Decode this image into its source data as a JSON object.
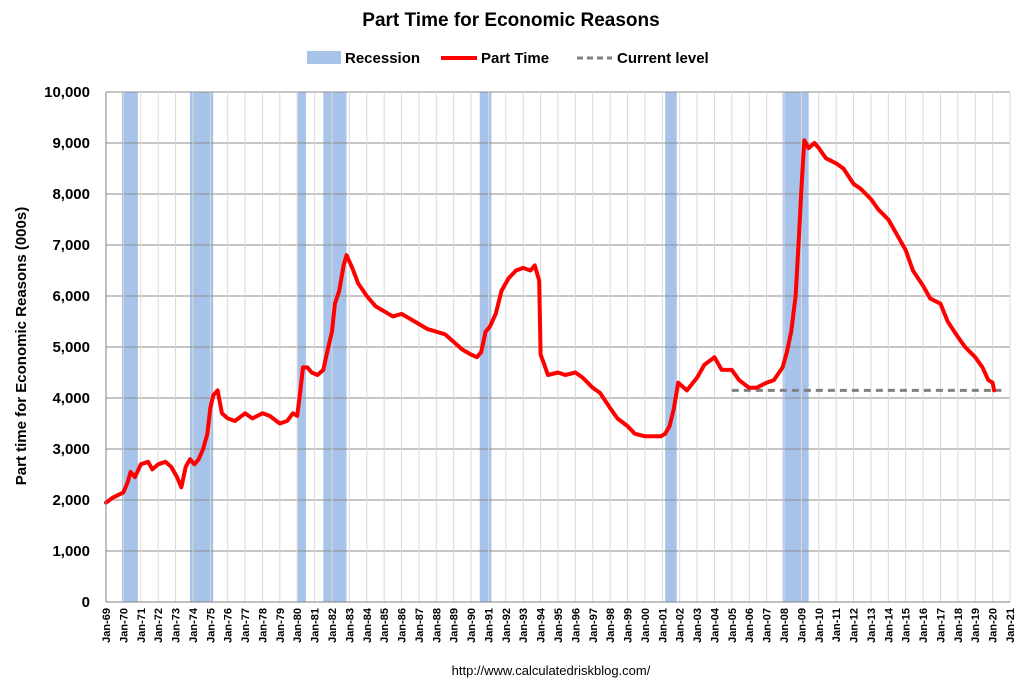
{
  "chart_data": {
    "type": "line",
    "title": "Part Time for Economic Reasons",
    "ylabel": "Part time for Economic Reasons (000s)",
    "xlabel": "",
    "source": "http://www.calculatedriskblog.com/",
    "ylim": [
      0,
      10000
    ],
    "xlim": [
      "1969-01",
      "2021-01"
    ],
    "yticks": [
      0,
      1000,
      2000,
      3000,
      4000,
      5000,
      6000,
      7000,
      8000,
      9000,
      10000
    ],
    "ytick_labels": [
      "0",
      "1,000",
      "2,000",
      "3,000",
      "4,000",
      "5,000",
      "6,000",
      "7,000",
      "8,000",
      "9,000",
      "10,000"
    ],
    "xtick_labels": [
      "Jan-69",
      "Jan-70",
      "Jan-71",
      "Jan-72",
      "Jan-73",
      "Jan-74",
      "Jan-75",
      "Jan-76",
      "Jan-77",
      "Jan-78",
      "Jan-79",
      "Jan-80",
      "Jan-81",
      "Jan-82",
      "Jan-83",
      "Jan-84",
      "Jan-85",
      "Jan-86",
      "Jan-87",
      "Jan-88",
      "Jan-89",
      "Jan-90",
      "Jan-91",
      "Jan-92",
      "Jan-93",
      "Jan-94",
      "Jan-95",
      "Jan-96",
      "Jan-97",
      "Jan-98",
      "Jan-99",
      "Jan-00",
      "Jan-01",
      "Jan-02",
      "Jan-03",
      "Jan-04",
      "Jan-05",
      "Jan-06",
      "Jan-07",
      "Jan-08",
      "Jan-09",
      "Jan-10",
      "Jan-11",
      "Jan-12",
      "Jan-13",
      "Jan-14",
      "Jan-15",
      "Jan-16",
      "Jan-17",
      "Jan-18",
      "Jan-19",
      "Jan-20",
      "Jan-21"
    ],
    "grid": true,
    "legend_position": "top",
    "legend": [
      "Recession",
      "Part Time",
      "Current level"
    ],
    "recessions": [
      {
        "start": "1969-12",
        "end": "1970-11"
      },
      {
        "start": "1973-11",
        "end": "1975-03"
      },
      {
        "start": "1980-01",
        "end": "1980-07"
      },
      {
        "start": "1981-07",
        "end": "1982-11"
      },
      {
        "start": "1990-07",
        "end": "1991-03"
      },
      {
        "start": "2001-03",
        "end": "2001-11"
      },
      {
        "start": "2007-12",
        "end": "2009-06"
      }
    ],
    "current_level": {
      "value": 4150,
      "start": "2005-01",
      "end": "2020-07"
    },
    "series": [
      {
        "name": "Part Time",
        "color": "#ff0000",
        "x": [
          "1969-01",
          "1969-06",
          "1970-01",
          "1970-04",
          "1970-06",
          "1970-09",
          "1971-01",
          "1971-06",
          "1971-09",
          "1972-01",
          "1972-06",
          "1972-10",
          "1973-02",
          "1973-05",
          "1973-08",
          "1973-11",
          "1974-02",
          "1974-05",
          "1974-08",
          "1974-11",
          "1975-01",
          "1975-03",
          "1975-06",
          "1975-09",
          "1976-01",
          "1976-06",
          "1977-01",
          "1977-06",
          "1978-01",
          "1978-06",
          "1979-01",
          "1979-06",
          "1979-10",
          "1980-01",
          "1980-03",
          "1980-05",
          "1980-08",
          "1980-11",
          "1981-03",
          "1981-07",
          "1981-10",
          "1982-01",
          "1982-03",
          "1982-06",
          "1982-09",
          "1982-11",
          "1983-03",
          "1983-07",
          "1984-01",
          "1984-07",
          "1985-01",
          "1985-07",
          "1986-01",
          "1986-07",
          "1987-01",
          "1987-07",
          "1988-01",
          "1988-07",
          "1989-01",
          "1989-07",
          "1990-01",
          "1990-05",
          "1990-08",
          "1990-11",
          "1991-02",
          "1991-06",
          "1991-10",
          "1992-03",
          "1992-08",
          "1993-01",
          "1993-06",
          "1993-09",
          "1993-12",
          "1994-01",
          "1994-03",
          "1994-06",
          "1995-01",
          "1995-06",
          "1996-01",
          "1996-06",
          "1997-01",
          "1997-06",
          "1998-01",
          "1998-06",
          "1999-01",
          "1999-06",
          "2000-01",
          "2000-06",
          "2000-12",
          "2001-03",
          "2001-06",
          "2001-09",
          "2001-12",
          "2002-06",
          "2003-01",
          "2003-06",
          "2004-01",
          "2004-06",
          "2005-01",
          "2005-06",
          "2006-01",
          "2006-06",
          "2007-01",
          "2007-06",
          "2007-12",
          "2008-03",
          "2008-06",
          "2008-09",
          "2008-11",
          "2009-01",
          "2009-03",
          "2009-06",
          "2009-10",
          "2010-01",
          "2010-06",
          "2011-01",
          "2011-06",
          "2012-01",
          "2012-06",
          "2013-01",
          "2013-06",
          "2014-01",
          "2014-06",
          "2015-01",
          "2015-06",
          "2016-01",
          "2016-06",
          "2017-01",
          "2017-06",
          "2018-01",
          "2018-06",
          "2019-01",
          "2019-06",
          "2019-10",
          "2020-01",
          "2020-02"
        ],
        "values": [
          1950,
          2050,
          2150,
          2350,
          2550,
          2450,
          2700,
          2750,
          2600,
          2700,
          2750,
          2650,
          2450,
          2250,
          2650,
          2800,
          2700,
          2800,
          3000,
          3300,
          3800,
          4050,
          4150,
          3700,
          3600,
          3550,
          3700,
          3600,
          3700,
          3650,
          3500,
          3550,
          3700,
          3650,
          4100,
          4600,
          4600,
          4500,
          4450,
          4550,
          4950,
          5300,
          5850,
          6100,
          6600,
          6800,
          6550,
          6250,
          6000,
          5800,
          5700,
          5600,
          5650,
          5550,
          5450,
          5350,
          5300,
          5250,
          5100,
          4950,
          4850,
          4800,
          4900,
          5300,
          5400,
          5650,
          6100,
          6350,
          6500,
          6550,
          6500,
          6600,
          6300,
          4850,
          4700,
          4450,
          4500,
          4450,
          4500,
          4400,
          4200,
          4100,
          3800,
          3600,
          3450,
          3300,
          3250,
          3250,
          3250,
          3300,
          3450,
          3800,
          4300,
          4150,
          4400,
          4650,
          4800,
          4550,
          4550,
          4350,
          4200,
          4200,
          4300,
          4350,
          4600,
          4900,
          5300,
          6000,
          7000,
          8100,
          9050,
          8900,
          9000,
          8900,
          8700,
          8600,
          8500,
          8200,
          8100,
          7900,
          7700,
          7500,
          7250,
          6900,
          6500,
          6200,
          5950,
          5850,
          5500,
          5200,
          5000,
          4800,
          4600,
          4350,
          4300,
          4150
        ]
      }
    ]
  }
}
